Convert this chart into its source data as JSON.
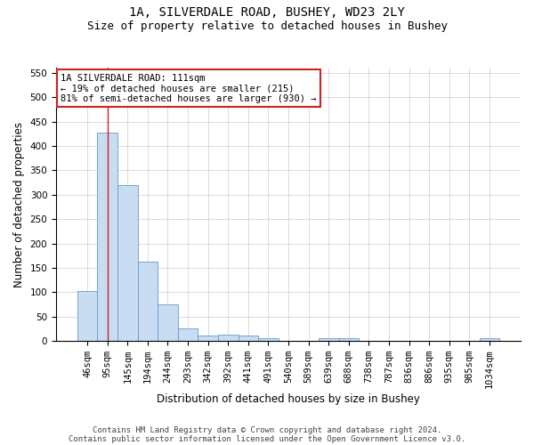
{
  "title_line1": "1A, SILVERDALE ROAD, BUSHEY, WD23 2LY",
  "title_line2": "Size of property relative to detached houses in Bushey",
  "xlabel": "Distribution of detached houses by size in Bushey",
  "ylabel": "Number of detached properties",
  "categories": [
    "46sqm",
    "95sqm",
    "145sqm",
    "194sqm",
    "244sqm",
    "293sqm",
    "342sqm",
    "392sqm",
    "441sqm",
    "491sqm",
    "540sqm",
    "589sqm",
    "639sqm",
    "688sqm",
    "738sqm",
    "787sqm",
    "836sqm",
    "886sqm",
    "935sqm",
    "985sqm",
    "1034sqm"
  ],
  "values": [
    102,
    427,
    320,
    163,
    75,
    26,
    11,
    12,
    11,
    6,
    0,
    0,
    5,
    5,
    0,
    0,
    0,
    0,
    0,
    0,
    5
  ],
  "bar_color": "#c9ddf2",
  "bar_edge_color": "#6699cc",
  "vline_x_index": 1,
  "vline_color": "#cc2222",
  "annotation_text": "1A SILVERDALE ROAD: 111sqm\n← 19% of detached houses are smaller (215)\n81% of semi-detached houses are larger (930) →",
  "annotation_box_color": "#ffffff",
  "annotation_box_edge": "#cc2222",
  "footnote1": "Contains HM Land Registry data © Crown copyright and database right 2024.",
  "footnote2": "Contains public sector information licensed under the Open Government Licence v3.0.",
  "ylim": [
    0,
    560
  ],
  "yticks": [
    0,
    50,
    100,
    150,
    200,
    250,
    300,
    350,
    400,
    450,
    500,
    550
  ],
  "grid_color": "#cccccc",
  "background_color": "#ffffff",
  "title_fontsize": 10,
  "subtitle_fontsize": 9,
  "axis_label_fontsize": 8.5,
  "tick_fontsize": 7.5,
  "footnote_fontsize": 6.5
}
